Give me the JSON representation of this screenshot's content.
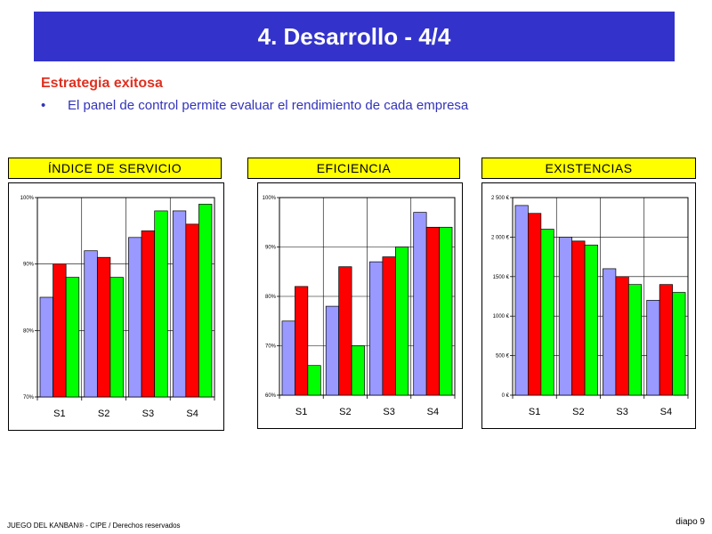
{
  "slide": {
    "title": "4. Desarrollo - 4/4",
    "subtitle": "Estrategia exitosa",
    "bullet": "El panel de control permite evaluar el rendimiento de cada empresa",
    "bullet_symbol": "•",
    "footer_left": "JUEGO DEL KANBAN® - CIPE /  Derechos reservados",
    "footer_right": "diapo 9"
  },
  "colors": {
    "title_bg": "#3333cc",
    "header_bg": "#ffff00",
    "series": [
      "#9999ff",
      "#ff0000",
      "#00ff00"
    ]
  },
  "chart_data": [
    {
      "type": "bar",
      "title": "ÍNDICE DE SERVICIO",
      "categories": [
        "S1",
        "S2",
        "S3",
        "S4"
      ],
      "series": [
        {
          "values": [
            85,
            92,
            94,
            98
          ]
        },
        {
          "values": [
            90,
            91,
            95,
            96
          ]
        },
        {
          "values": [
            88,
            88,
            98,
            99
          ]
        }
      ],
      "ylim": [
        70,
        100
      ],
      "yticks": [
        70,
        80,
        90,
        100
      ],
      "ytick_labels": [
        "70%",
        "80%",
        "90%",
        "100%"
      ],
      "grid": true
    },
    {
      "type": "bar",
      "title": "EFICIENCIA",
      "categories": [
        "S1",
        "S2",
        "S3",
        "S4"
      ],
      "series": [
        {
          "values": [
            75,
            78,
            87,
            97
          ]
        },
        {
          "values": [
            82,
            86,
            88,
            94
          ]
        },
        {
          "values": [
            66,
            70,
            90,
            94
          ]
        }
      ],
      "ylim": [
        60,
        100
      ],
      "yticks": [
        60,
        70,
        80,
        90,
        100
      ],
      "ytick_labels": [
        "60%",
        "70%",
        "80%",
        "90%",
        "100%"
      ],
      "grid": true
    },
    {
      "type": "bar",
      "title": "EXISTENCIAS",
      "categories": [
        "S1",
        "S2",
        "S3",
        "S4"
      ],
      "series": [
        {
          "values": [
            2400,
            2000,
            1600,
            1200
          ]
        },
        {
          "values": [
            2300,
            1950,
            1500,
            1400
          ]
        },
        {
          "values": [
            2100,
            1900,
            1400,
            1300
          ]
        }
      ],
      "ylim": [
        0,
        2500
      ],
      "yticks": [
        0,
        500,
        1000,
        1500,
        2000,
        2500
      ],
      "ytick_labels": [
        "0 €",
        "500 €",
        "1000 €",
        "1500 €",
        "2 000 €",
        "2 500 €"
      ],
      "grid": true
    }
  ]
}
